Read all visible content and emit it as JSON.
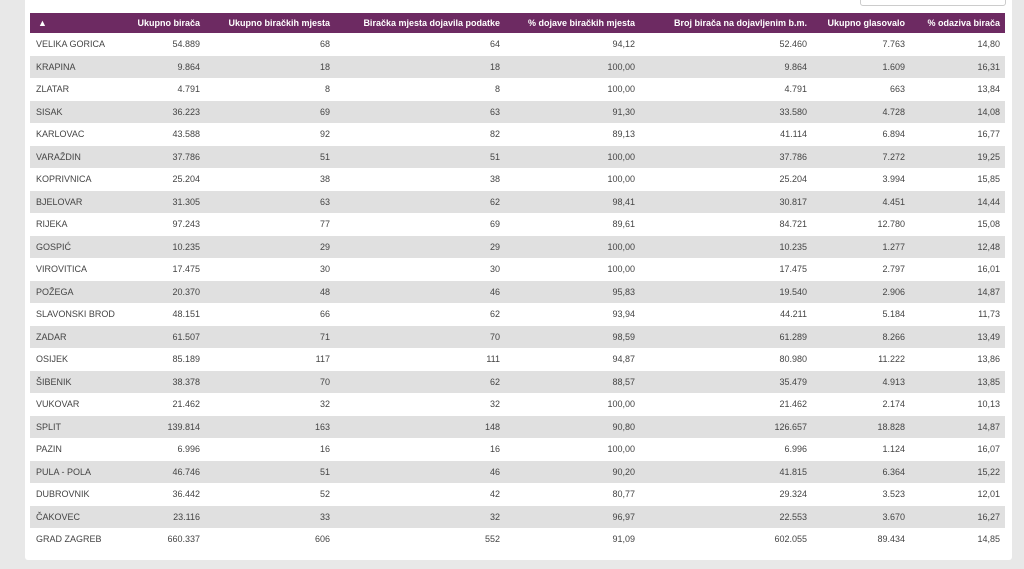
{
  "table": {
    "header": [
      "▲",
      "Ukupno birača",
      "Ukupno biračkih mjesta",
      "Biračka mjesta dojavila podatke",
      "% dojave biračkih mjesta",
      "Broj birača na dojavljenim b.m.",
      "Ukupno glasovalo",
      "% odaziva birača"
    ],
    "rows": [
      [
        "VELIKA GORICA",
        "54.889",
        "68",
        "64",
        "94,12",
        "52.460",
        "7.763",
        "14,80"
      ],
      [
        "KRAPINA",
        "9.864",
        "18",
        "18",
        "100,00",
        "9.864",
        "1.609",
        "16,31"
      ],
      [
        "ZLATAR",
        "4.791",
        "8",
        "8",
        "100,00",
        "4.791",
        "663",
        "13,84"
      ],
      [
        "SISAK",
        "36.223",
        "69",
        "63",
        "91,30",
        "33.580",
        "4.728",
        "14,08"
      ],
      [
        "KARLOVAC",
        "43.588",
        "92",
        "82",
        "89,13",
        "41.114",
        "6.894",
        "16,77"
      ],
      [
        "VARAŽDIN",
        "37.786",
        "51",
        "51",
        "100,00",
        "37.786",
        "7.272",
        "19,25"
      ],
      [
        "KOPRIVNICA",
        "25.204",
        "38",
        "38",
        "100,00",
        "25.204",
        "3.994",
        "15,85"
      ],
      [
        "BJELOVAR",
        "31.305",
        "63",
        "62",
        "98,41",
        "30.817",
        "4.451",
        "14,44"
      ],
      [
        "RIJEKA",
        "97.243",
        "77",
        "69",
        "89,61",
        "84.721",
        "12.780",
        "15,08"
      ],
      [
        "GOSPIĆ",
        "10.235",
        "29",
        "29",
        "100,00",
        "10.235",
        "1.277",
        "12,48"
      ],
      [
        "VIROVITICA",
        "17.475",
        "30",
        "30",
        "100,00",
        "17.475",
        "2.797",
        "16,01"
      ],
      [
        "POŽEGA",
        "20.370",
        "48",
        "46",
        "95,83",
        "19.540",
        "2.906",
        "14,87"
      ],
      [
        "SLAVONSKI BROD",
        "48.151",
        "66",
        "62",
        "93,94",
        "44.211",
        "5.184",
        "11,73"
      ],
      [
        "ZADAR",
        "61.507",
        "71",
        "70",
        "98,59",
        "61.289",
        "8.266",
        "13,49"
      ],
      [
        "OSIJEK",
        "85.189",
        "117",
        "111",
        "94,87",
        "80.980",
        "11.222",
        "13,86"
      ],
      [
        "ŠIBENIK",
        "38.378",
        "70",
        "62",
        "88,57",
        "35.479",
        "4.913",
        "13,85"
      ],
      [
        "VUKOVAR",
        "21.462",
        "32",
        "32",
        "100,00",
        "21.462",
        "2.174",
        "10,13"
      ],
      [
        "SPLIT",
        "139.814",
        "163",
        "148",
        "90,80",
        "126.657",
        "18.828",
        "14,87"
      ],
      [
        "PAZIN",
        "6.996",
        "16",
        "16",
        "100,00",
        "6.996",
        "1.124",
        "16,07"
      ],
      [
        "PULA - POLA",
        "46.746",
        "51",
        "46",
        "90,20",
        "41.815",
        "6.364",
        "15,22"
      ],
      [
        "DUBROVNIK",
        "36.442",
        "52",
        "42",
        "80,77",
        "29.324",
        "3.523",
        "12,01"
      ],
      [
        "ČAKOVEC",
        "23.116",
        "33",
        "32",
        "96,97",
        "22.553",
        "3.670",
        "16,27"
      ],
      [
        "GRAD ZAGREB",
        "660.337",
        "606",
        "552",
        "91,09",
        "602.055",
        "89.434",
        "14,85"
      ]
    ]
  }
}
